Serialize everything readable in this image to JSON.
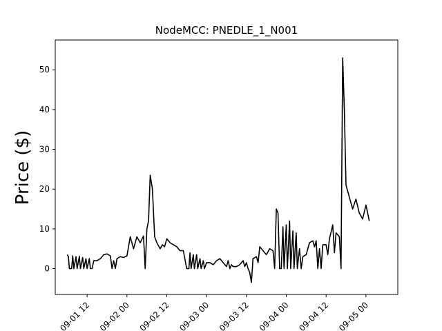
{
  "chart_data": {
    "type": "line",
    "title": "NodeMCC: PNEDLE_1_N001",
    "xlabel": "",
    "ylabel": "Price ($)",
    "xlim": [
      "2025-09-01 02:24",
      "2025-09-05 09:36"
    ],
    "ylim": [
      -6.5,
      57.5
    ],
    "x_tick_step_hours": 12,
    "x_ticks": [
      "2025-09-01 12:00",
      "2025-09-02 00:00",
      "2025-09-02 12:00",
      "2025-09-03 00:00",
      "2025-09-03 12:00",
      "2025-09-04 00:00",
      "2025-09-04 12:00",
      "2025-09-05 00:00"
    ],
    "x_tick_labels": [
      "09-01 12",
      "09-02 00",
      "09-02 12",
      "09-03 00",
      "09-03 12",
      "09-04 00",
      "09-04 12",
      "09-05 00"
    ],
    "y_ticks": [
      0,
      10,
      20,
      30,
      40,
      50
    ],
    "y_tick_labels": [
      "0",
      "10",
      "20",
      "30",
      "40",
      "50"
    ],
    "grid": false,
    "series_color": "#000000",
    "series": [
      {
        "points": [
          [
            "2025-09-01 06:00",
            3.5
          ],
          [
            "2025-09-01 06:20",
            3.1
          ],
          [
            "2025-09-01 06:40",
            0.0
          ],
          [
            "2025-09-01 07:20",
            0.0
          ],
          [
            "2025-09-01 07:40",
            3.2
          ],
          [
            "2025-09-01 08:00",
            0.0
          ],
          [
            "2025-09-01 08:40",
            3.0
          ],
          [
            "2025-09-01 09:00",
            0.0
          ],
          [
            "2025-09-01 09:40",
            3.1
          ],
          [
            "2025-09-01 10:00",
            0.0
          ],
          [
            "2025-09-01 10:40",
            2.8
          ],
          [
            "2025-09-01 11:00",
            0.0
          ],
          [
            "2025-09-01 11:40",
            2.5
          ],
          [
            "2025-09-01 12:00",
            0.0
          ],
          [
            "2025-09-01 12:40",
            2.5
          ],
          [
            "2025-09-01 13:00",
            0.0
          ],
          [
            "2025-09-01 13:30",
            0.0
          ],
          [
            "2025-09-01 14:00",
            2.0
          ],
          [
            "2025-09-01 15:00",
            2.0
          ],
          [
            "2025-09-01 16:00",
            2.5
          ],
          [
            "2025-09-01 17:00",
            3.5
          ],
          [
            "2025-09-01 18:00",
            3.7
          ],
          [
            "2025-09-01 19:00",
            3.2
          ],
          [
            "2025-09-01 19:30",
            0.0
          ],
          [
            "2025-09-01 20:00",
            2.0
          ],
          [
            "2025-09-01 20:30",
            0.0
          ],
          [
            "2025-09-01 21:00",
            2.5
          ],
          [
            "2025-09-01 22:00",
            3.0
          ],
          [
            "2025-09-01 23:00",
            2.8
          ],
          [
            "2025-09-02 00:00",
            3.2
          ],
          [
            "2025-09-02 01:00",
            8.0
          ],
          [
            "2025-09-02 02:00",
            5.0
          ],
          [
            "2025-09-02 03:00",
            8.0
          ],
          [
            "2025-09-02 04:00",
            6.5
          ],
          [
            "2025-09-02 05:00",
            8.2
          ],
          [
            "2025-09-02 05:30",
            0.0
          ],
          [
            "2025-09-02 06:00",
            10.0
          ],
          [
            "2025-09-02 06:30",
            12.0
          ],
          [
            "2025-09-02 07:00",
            23.5
          ],
          [
            "2025-09-02 07:40",
            20.0
          ],
          [
            "2025-09-02 08:20",
            8.0
          ],
          [
            "2025-09-02 09:00",
            6.5
          ],
          [
            "2025-09-02 10:00",
            5.0
          ],
          [
            "2025-09-02 10:40",
            6.0
          ],
          [
            "2025-09-02 11:20",
            5.5
          ],
          [
            "2025-09-02 12:00",
            7.5
          ],
          [
            "2025-09-02 13:00",
            6.5
          ],
          [
            "2025-09-02 14:00",
            6.0
          ],
          [
            "2025-09-02 15:00",
            5.5
          ],
          [
            "2025-09-02 16:00",
            4.5
          ],
          [
            "2025-09-02 17:00",
            4.5
          ],
          [
            "2025-09-02 18:00",
            0.0
          ],
          [
            "2025-09-02 18:40",
            0.0
          ],
          [
            "2025-09-02 19:00",
            4.0
          ],
          [
            "2025-09-02 19:20",
            0.0
          ],
          [
            "2025-09-02 20:00",
            3.5
          ],
          [
            "2025-09-02 20:20",
            0.0
          ],
          [
            "2025-09-02 21:00",
            3.5
          ],
          [
            "2025-09-02 21:20",
            0.0
          ],
          [
            "2025-09-02 22:00",
            2.5
          ],
          [
            "2025-09-02 22:20",
            0.0
          ],
          [
            "2025-09-02 23:00",
            2.0
          ],
          [
            "2025-09-02 23:20",
            0.0
          ],
          [
            "2025-09-03 00:00",
            1.5
          ],
          [
            "2025-09-03 01:00",
            1.5
          ],
          [
            "2025-09-03 02:00",
            1.0
          ],
          [
            "2025-09-03 03:00",
            2.0
          ],
          [
            "2025-09-03 04:00",
            2.5
          ],
          [
            "2025-09-03 05:00",
            1.5
          ],
          [
            "2025-09-03 06:00",
            0.5
          ],
          [
            "2025-09-03 06:30",
            2.0
          ],
          [
            "2025-09-03 07:00",
            0.0
          ],
          [
            "2025-09-03 07:30",
            1.0
          ],
          [
            "2025-09-03 08:00",
            0.5
          ],
          [
            "2025-09-03 09:00",
            0.5
          ],
          [
            "2025-09-03 10:00",
            1.0
          ],
          [
            "2025-09-03 11:00",
            2.0
          ],
          [
            "2025-09-03 11:30",
            0.5
          ],
          [
            "2025-09-03 12:00",
            1.5
          ],
          [
            "2025-09-03 12:30",
            0.0
          ],
          [
            "2025-09-03 13:00",
            -1.0
          ],
          [
            "2025-09-03 13:30",
            -3.5
          ],
          [
            "2025-09-03 14:00",
            2.5
          ],
          [
            "2025-09-03 15:00",
            3.0
          ],
          [
            "2025-09-03 15:30",
            1.5
          ],
          [
            "2025-09-03 16:00",
            5.5
          ],
          [
            "2025-09-03 17:00",
            4.5
          ],
          [
            "2025-09-03 18:00",
            3.5
          ],
          [
            "2025-09-03 19:00",
            5.0
          ],
          [
            "2025-09-03 20:00",
            4.5
          ],
          [
            "2025-09-03 20:30",
            0.0
          ],
          [
            "2025-09-03 21:00",
            15.0
          ],
          [
            "2025-09-03 21:30",
            14.0
          ],
          [
            "2025-09-03 22:00",
            0.0
          ],
          [
            "2025-09-03 22:30",
            0.0
          ],
          [
            "2025-09-03 23:00",
            10.5
          ],
          [
            "2025-09-03 23:20",
            0.0
          ],
          [
            "2025-09-04 00:00",
            11.0
          ],
          [
            "2025-09-04 00:20",
            0.0
          ],
          [
            "2025-09-04 01:00",
            12.0
          ],
          [
            "2025-09-04 01:20",
            0.0
          ],
          [
            "2025-09-04 02:00",
            9.5
          ],
          [
            "2025-09-04 02:20",
            0.0
          ],
          [
            "2025-09-04 03:00",
            9.0
          ],
          [
            "2025-09-04 03:20",
            0.0
          ],
          [
            "2025-09-04 04:00",
            5.0
          ],
          [
            "2025-09-04 04:30",
            0.0
          ],
          [
            "2025-09-04 05:00",
            3.0
          ],
          [
            "2025-09-04 06:00",
            3.5
          ],
          [
            "2025-09-04 07:00",
            6.5
          ],
          [
            "2025-09-04 08:00",
            7.0
          ],
          [
            "2025-09-04 08:30",
            5.5
          ],
          [
            "2025-09-04 09:00",
            7.0
          ],
          [
            "2025-09-04 09:30",
            0.0
          ],
          [
            "2025-09-04 10:00",
            5.0
          ],
          [
            "2025-09-04 10:30",
            0.0
          ],
          [
            "2025-09-04 11:00",
            6.0
          ],
          [
            "2025-09-04 12:00",
            6.0
          ],
          [
            "2025-09-04 12:30",
            3.5
          ],
          [
            "2025-09-04 13:00",
            7.5
          ],
          [
            "2025-09-04 14:00",
            11.0
          ],
          [
            "2025-09-04 14:30",
            4.0
          ],
          [
            "2025-09-04 15:00",
            9.0
          ],
          [
            "2025-09-04 16:00",
            8.0
          ],
          [
            "2025-09-04 16:30",
            0.0
          ],
          [
            "2025-09-04 17:00",
            53.0
          ],
          [
            "2025-09-04 17:30",
            40.0
          ],
          [
            "2025-09-04 18:00",
            21.0
          ],
          [
            "2025-09-04 19:00",
            18.0
          ],
          [
            "2025-09-04 20:00",
            15.0
          ],
          [
            "2025-09-04 21:00",
            17.5
          ],
          [
            "2025-09-04 22:00",
            14.0
          ],
          [
            "2025-09-04 23:00",
            12.5
          ],
          [
            "2025-09-05 00:00",
            16.0
          ],
          [
            "2025-09-05 01:00",
            12.0
          ]
        ]
      }
    ]
  }
}
